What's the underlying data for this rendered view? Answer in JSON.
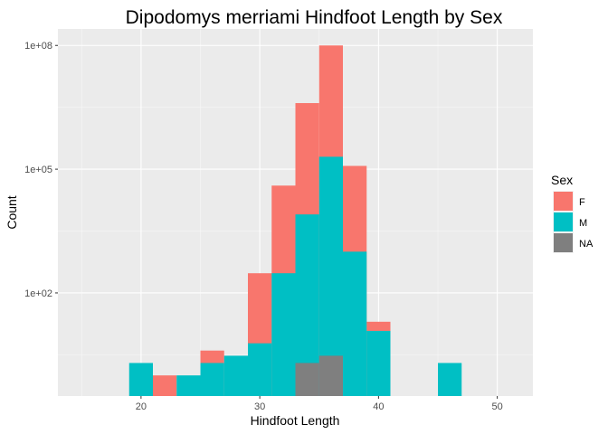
{
  "chart_data": {
    "type": "bar",
    "subtype": "stacked-histogram",
    "title": "Dipodomys merriami Hindfoot Length by Sex",
    "xlabel": "Hindfoot Length",
    "ylabel": "Count",
    "y_scale": "log10",
    "xlim": [
      13,
      53
    ],
    "ylim_log10": [
      -0.5,
      8.4
    ],
    "x_ticks": [
      20,
      30,
      40,
      50
    ],
    "x_tick_labels": [
      "20",
      "30",
      "40",
      "50"
    ],
    "y_ticks": [
      100,
      100000,
      100000000
    ],
    "y_tick_labels": [
      "1e+02",
      "1e+05",
      "1e+08"
    ],
    "grid": true,
    "legend": {
      "title": "Sex",
      "position": "right"
    },
    "bins": [
      {
        "x0": 19,
        "x1": 21
      },
      {
        "x0": 21,
        "x1": 23
      },
      {
        "x0": 23,
        "x1": 25
      },
      {
        "x0": 25,
        "x1": 27
      },
      {
        "x0": 27,
        "x1": 29
      },
      {
        "x0": 29,
        "x1": 31
      },
      {
        "x0": 31,
        "x1": 33
      },
      {
        "x0": 33,
        "x1": 35
      },
      {
        "x0": 35,
        "x1": 37
      },
      {
        "x0": 37,
        "x1": 39
      },
      {
        "x0": 39,
        "x1": 41
      },
      {
        "x0": 41,
        "x1": 43
      },
      {
        "x0": 43,
        "x1": 45
      },
      {
        "x0": 45,
        "x1": 47
      }
    ],
    "series": [
      {
        "name": "F",
        "color": "#F8766D",
        "cumulative_tops": [
          null,
          1,
          null,
          4,
          null,
          300,
          40000,
          4000000,
          100000000,
          120000,
          20,
          null,
          null,
          null
        ]
      },
      {
        "name": "M",
        "color": "#00BFC4",
        "cumulative_tops": [
          2,
          null,
          1,
          2,
          3,
          6,
          300,
          8000,
          200000,
          1000,
          12,
          null,
          null,
          2
        ]
      },
      {
        "name": "NA",
        "color": "#7F7F7F",
        "cumulative_tops": [
          null,
          null,
          null,
          null,
          null,
          null,
          null,
          2,
          3,
          null,
          null,
          null,
          null,
          null
        ]
      }
    ]
  }
}
